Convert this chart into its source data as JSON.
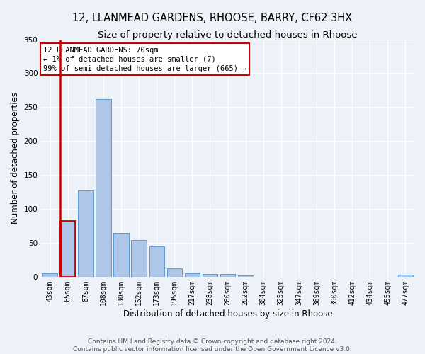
{
  "title_line1": "12, LLANMEAD GARDENS, RHOOSE, BARRY, CF62 3HX",
  "title_line2": "Size of property relative to detached houses in Rhoose",
  "xlabel": "Distribution of detached houses by size in Rhoose",
  "ylabel": "Number of detached properties",
  "categories": [
    "43sqm",
    "65sqm",
    "87sqm",
    "108sqm",
    "130sqm",
    "152sqm",
    "173sqm",
    "195sqm",
    "217sqm",
    "238sqm",
    "260sqm",
    "282sqm",
    "304sqm",
    "325sqm",
    "347sqm",
    "369sqm",
    "390sqm",
    "412sqm",
    "434sqm",
    "455sqm",
    "477sqm"
  ],
  "values": [
    6,
    83,
    127,
    262,
    65,
    55,
    45,
    13,
    6,
    4,
    4,
    2,
    0,
    0,
    0,
    0,
    0,
    0,
    0,
    0,
    3
  ],
  "bar_color": "#aec6e8",
  "bar_edge_color": "#5b9bd5",
  "highlight_bar_index": 1,
  "highlight_color": "#cc0000",
  "ylim": [
    0,
    350
  ],
  "yticks": [
    0,
    50,
    100,
    150,
    200,
    250,
    300,
    350
  ],
  "annotation_text": "12 LLANMEAD GARDENS: 70sqm\n← 1% of detached houses are smaller (7)\n99% of semi-detached houses are larger (665) →",
  "footnote": "Contains HM Land Registry data © Crown copyright and database right 2024.\nContains public sector information licensed under the Open Government Licence v3.0.",
  "bg_color": "#edf1f8",
  "grid_color": "#ffffff",
  "title_fontsize": 10.5,
  "subtitle_fontsize": 9.5,
  "tick_fontsize": 7,
  "ylabel_fontsize": 8.5,
  "xlabel_fontsize": 8.5,
  "annotation_fontsize": 7.5,
  "footnote_fontsize": 6.5
}
